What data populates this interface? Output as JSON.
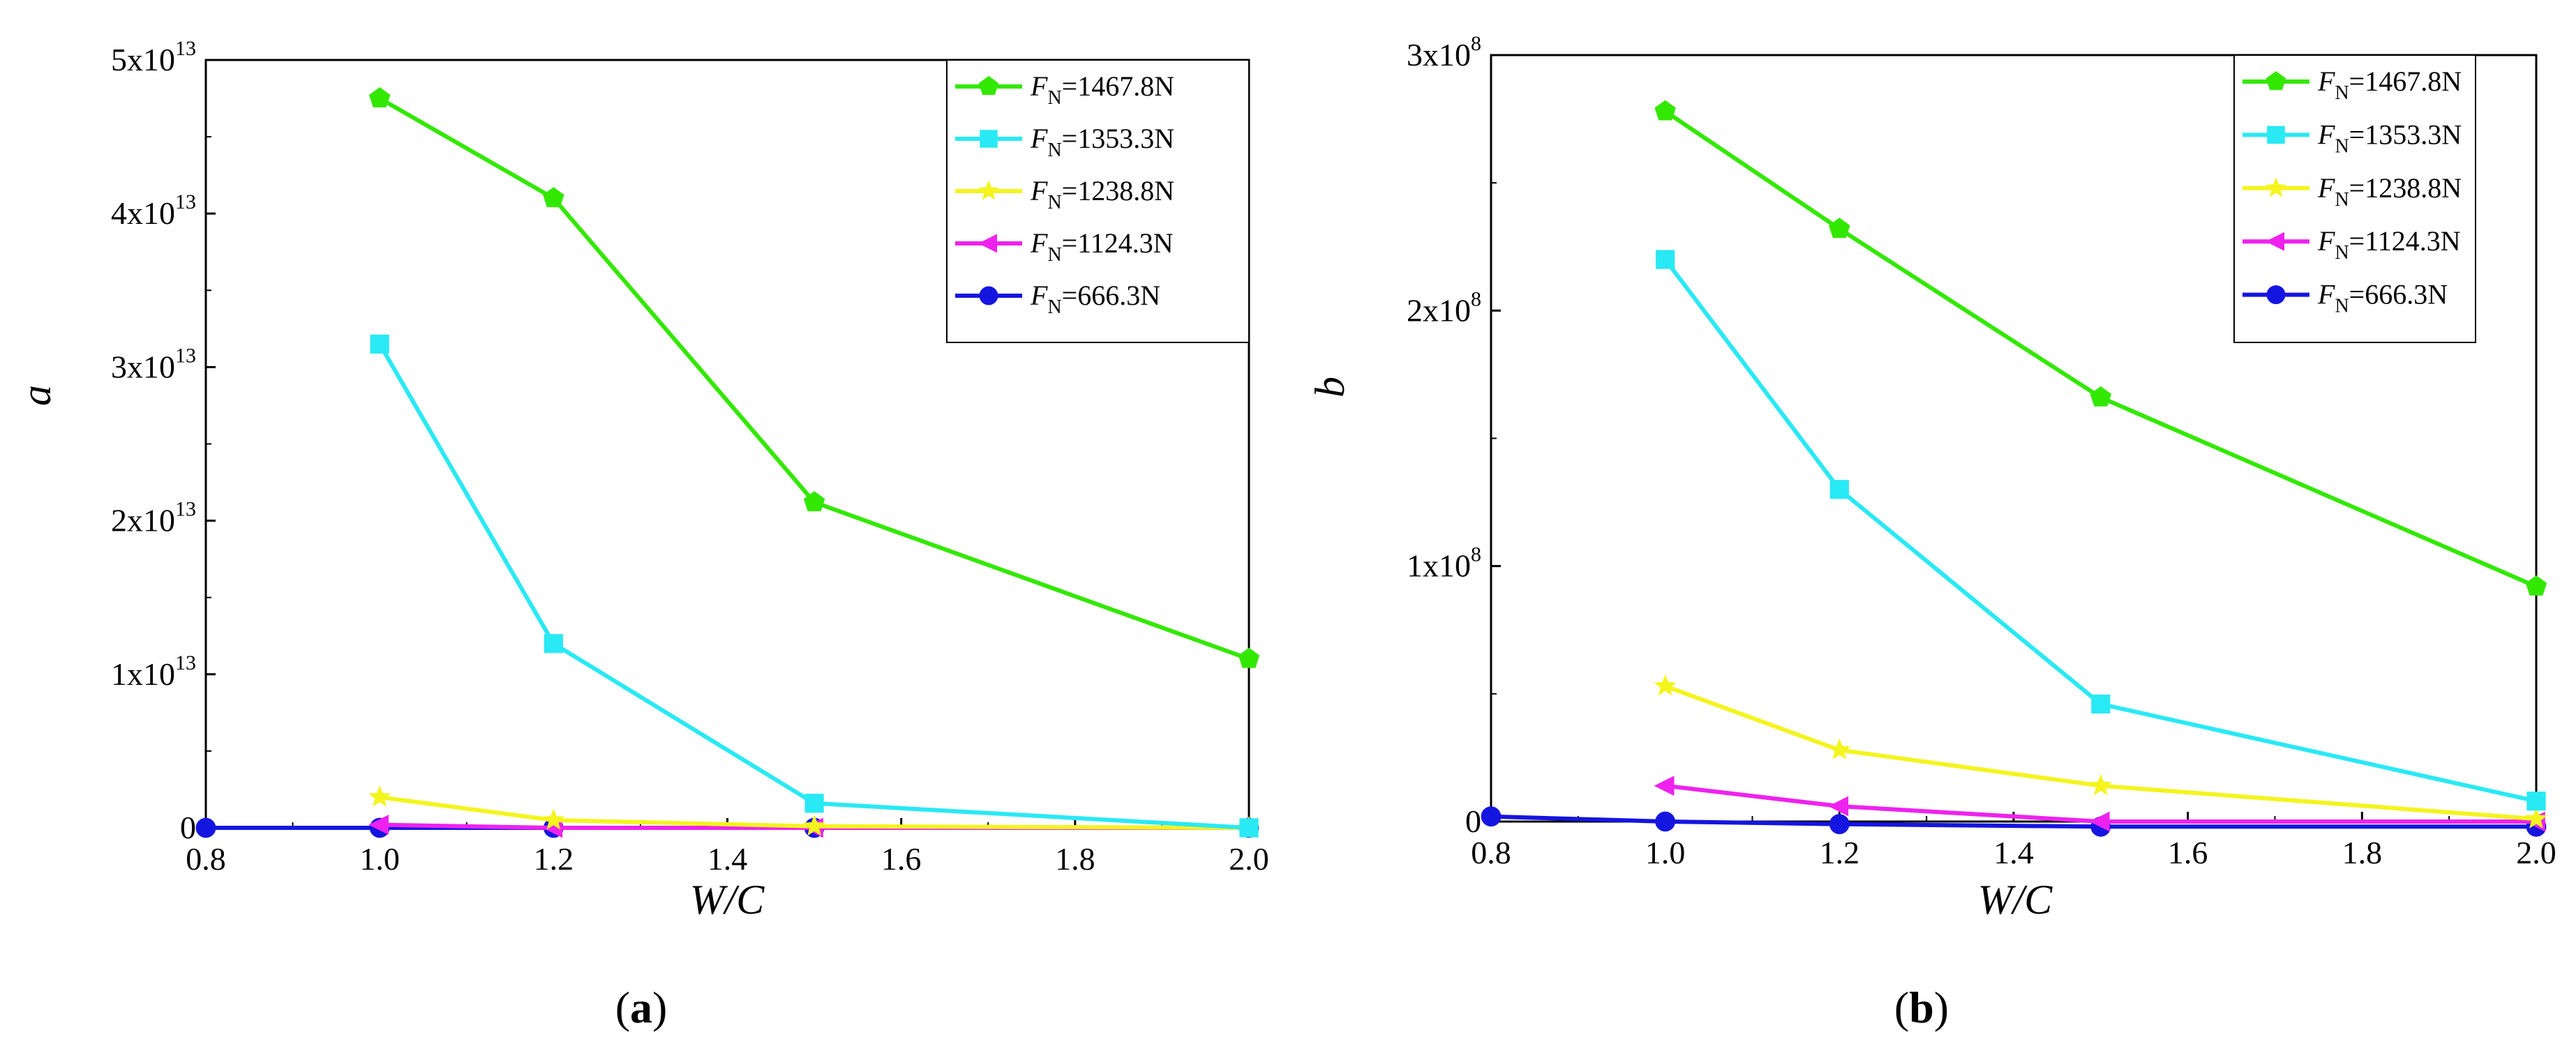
{
  "chart_data": [
    {
      "type": "line",
      "panel_label": "(a)",
      "panel_letter": "a",
      "title": "",
      "xlabel": "W/C",
      "ylabel": "a",
      "xlim": [
        0.8,
        2.0
      ],
      "ylim": [
        0,
        50000000000000.0
      ],
      "xticks": [
        0.8,
        1.0,
        1.2,
        1.4,
        1.6,
        1.8,
        2.0
      ],
      "xtick_labels": [
        "0.8",
        "1.0",
        "1.2",
        "1.4",
        "1.6",
        "1.8",
        "2.0"
      ],
      "yticks": [
        0,
        10000000000000.0,
        20000000000000.0,
        30000000000000.0,
        40000000000000.0,
        50000000000000.0
      ],
      "ytick_labels": [
        {
          "mantissa": "0",
          "exp": ""
        },
        {
          "mantissa": "1x10",
          "exp": "13"
        },
        {
          "mantissa": "2x10",
          "exp": "13"
        },
        {
          "mantissa": "3x10",
          "exp": "13"
        },
        {
          "mantissa": "4x10",
          "exp": "13"
        },
        {
          "mantissa": "5x10",
          "exp": "13"
        }
      ],
      "legend_position": "top-right",
      "series": [
        {
          "name": "F_N=1467.8N",
          "sym": "F",
          "sub": "N",
          "rest": "=1467.8N",
          "color": "#33e800",
          "marker": "pentagon",
          "x": [
            1.0,
            1.2,
            1.5,
            2.0
          ],
          "y": [
            47500000000000.0,
            41000000000000.0,
            21200000000000.0,
            11000000000000.0
          ]
        },
        {
          "name": "F_N=1353.3N",
          "sym": "F",
          "sub": "N",
          "rest": "=1353.3N",
          "color": "#29e9f4",
          "marker": "square",
          "x": [
            1.0,
            1.2,
            1.5,
            2.0
          ],
          "y": [
            31500000000000.0,
            12000000000000.0,
            1600000000000.0,
            0
          ]
        },
        {
          "name": "F_N=1238.8N",
          "sym": "F",
          "sub": "N",
          "rest": "=1238.8N",
          "color": "#f4f41e",
          "marker": "star",
          "x": [
            1.0,
            1.2,
            1.5,
            2.0
          ],
          "y": [
            2000000000000.0,
            500000000000.0,
            100000000000.0,
            0
          ]
        },
        {
          "name": "F_N=1124.3N",
          "sym": "F",
          "sub": "N",
          "rest": "=1124.3N",
          "color": "#ee22ee",
          "marker": "triangle-left",
          "x": [
            1.0,
            1.2,
            1.5,
            2.0
          ],
          "y": [
            200000000000.0,
            0,
            0,
            0
          ]
        },
        {
          "name": "F_N=666.3N",
          "sym": "F",
          "sub": "N",
          "rest": "=666.3N",
          "color": "#1515e0",
          "marker": "circle",
          "x": [
            0.8,
            1.0,
            1.2,
            1.5,
            2.0
          ],
          "y": [
            0,
            0,
            0,
            0,
            0
          ]
        }
      ]
    },
    {
      "type": "line",
      "panel_label": "(b)",
      "panel_letter": "b",
      "title": "",
      "xlabel": "W/C",
      "ylabel": "b",
      "xlim": [
        0.8,
        2.0
      ],
      "ylim": [
        0,
        300000000.0
      ],
      "xticks": [
        0.8,
        1.0,
        1.2,
        1.4,
        1.6,
        1.8,
        2.0
      ],
      "xtick_labels": [
        "0.8",
        "1.0",
        "1.2",
        "1.4",
        "1.6",
        "1.8",
        "2.0"
      ],
      "yticks": [
        0,
        100000000.0,
        200000000.0,
        300000000.0
      ],
      "ytick_labels": [
        {
          "mantissa": "0",
          "exp": ""
        },
        {
          "mantissa": "1x10",
          "exp": "8"
        },
        {
          "mantissa": "2x10",
          "exp": "8"
        },
        {
          "mantissa": "3x10",
          "exp": "8"
        }
      ],
      "legend_position": "top-right",
      "series": [
        {
          "name": "F_N=1467.8N",
          "sym": "F",
          "sub": "N",
          "rest": "=1467.8N",
          "color": "#33e800",
          "marker": "pentagon",
          "x": [
            1.0,
            1.2,
            1.5,
            2.0
          ],
          "y": [
            278000000.0,
            232000000.0,
            166000000.0,
            92000000.0
          ]
        },
        {
          "name": "F_N=1353.3N",
          "sym": "F",
          "sub": "N",
          "rest": "=1353.3N",
          "color": "#29e9f4",
          "marker": "square",
          "x": [
            1.0,
            1.2,
            1.5,
            2.0
          ],
          "y": [
            220000000.0,
            130000000.0,
            46000000.0,
            8000000.0
          ]
        },
        {
          "name": "F_N=1238.8N",
          "sym": "F",
          "sub": "N",
          "rest": "=1238.8N",
          "color": "#f4f41e",
          "marker": "star",
          "x": [
            1.0,
            1.2,
            1.5,
            2.0
          ],
          "y": [
            53000000.0,
            28000000.0,
            14000000.0,
            1000000.0
          ]
        },
        {
          "name": "F_N=1124.3N",
          "sym": "F",
          "sub": "N",
          "rest": "=1124.3N",
          "color": "#ee22ee",
          "marker": "triangle-left",
          "x": [
            1.0,
            1.2,
            1.5,
            2.0
          ],
          "y": [
            14000000.0,
            6000000.0,
            0,
            0
          ]
        },
        {
          "name": "F_N=666.3N",
          "sym": "F",
          "sub": "N",
          "rest": "=666.3N",
          "color": "#1515e0",
          "marker": "circle",
          "x": [
            0.8,
            1.0,
            1.2,
            1.5,
            2.0
          ],
          "y": [
            2000000.0,
            0,
            -1000000.0,
            -2000000.0,
            -2000000.0
          ]
        }
      ]
    }
  ]
}
